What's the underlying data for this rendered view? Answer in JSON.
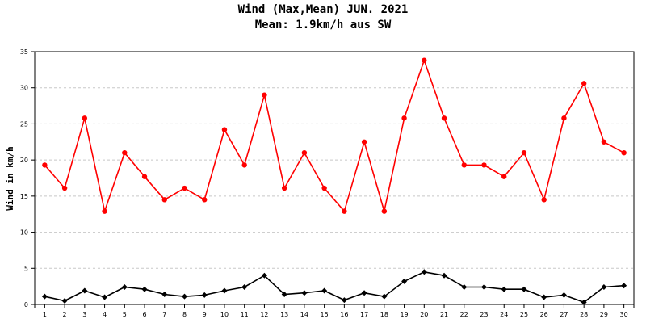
{
  "chart_data": {
    "type": "line",
    "title": "Wind (Max,Mean) JUN. 2021",
    "subtitle": "Mean: 1.9km/h aus SW",
    "xlabel": "",
    "ylabel": "Wind in km/h",
    "x": [
      1,
      2,
      3,
      4,
      5,
      6,
      7,
      8,
      9,
      10,
      11,
      12,
      13,
      14,
      15,
      16,
      17,
      18,
      19,
      20,
      21,
      22,
      23,
      24,
      25,
      26,
      27,
      28,
      29,
      30
    ],
    "ylim": [
      0,
      35
    ],
    "yticks": [
      0,
      5,
      10,
      15,
      20,
      25,
      30,
      35
    ],
    "grid": true,
    "series": [
      {
        "color": "#ff0000",
        "marker": "circle",
        "values": [
          19.3,
          16.1,
          25.8,
          12.9,
          21.0,
          17.7,
          14.5,
          16.1,
          14.5,
          24.2,
          19.3,
          29.0,
          16.1,
          21.0,
          16.1,
          12.9,
          22.5,
          12.9,
          25.8,
          33.8,
          25.8,
          19.3,
          19.3,
          17.7,
          21.0,
          14.5,
          25.8,
          30.6,
          22.5,
          21.0
        ]
      },
      {
        "color": "#000000",
        "marker": "diamond",
        "values": [
          1.1,
          0.5,
          1.9,
          1.0,
          2.4,
          2.1,
          1.4,
          1.1,
          1.3,
          1.9,
          2.4,
          4.0,
          1.4,
          1.6,
          1.9,
          0.6,
          1.6,
          1.1,
          3.2,
          4.5,
          4.0,
          2.4,
          2.4,
          2.1,
          2.1,
          1.0,
          1.3,
          0.3,
          2.4,
          2.6
        ]
      }
    ]
  }
}
